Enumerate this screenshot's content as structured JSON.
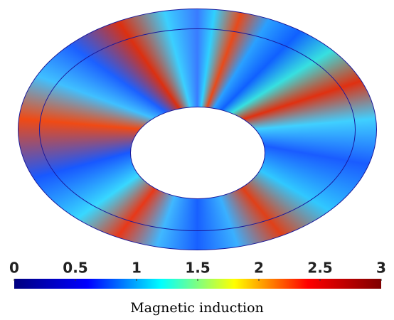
{
  "chart_data": {
    "type": "field-colormap",
    "colorbar_label": "Magnetic induction",
    "clim": [
      0,
      3
    ],
    "cticks": [
      0,
      0.5,
      1,
      1.5,
      2,
      2.5,
      3
    ],
    "colormap": [
      "#00007f",
      "#0000ff",
      "#00ffff",
      "#ffff00",
      "#ff0000",
      "#7f0000"
    ]
  }
}
